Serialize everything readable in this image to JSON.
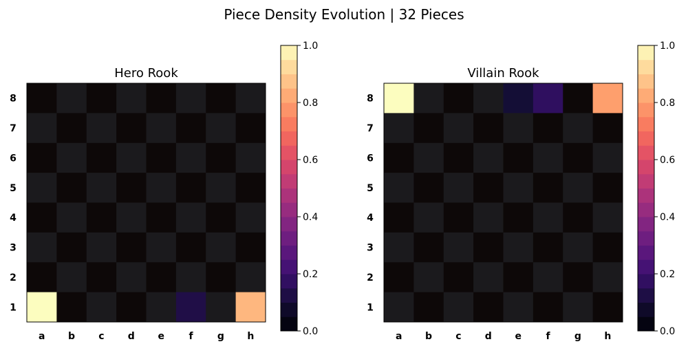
{
  "title": "Piece Density Evolution | 32 Pieces",
  "colors": {
    "dark_square": "#0d0808",
    "light_square": "#1b1a1d",
    "colormap": "magma"
  },
  "chart_data": [
    {
      "type": "heatmap",
      "title": "Hero Rook",
      "files": [
        "a",
        "b",
        "c",
        "d",
        "e",
        "f",
        "g",
        "h"
      ],
      "ranks": [
        "8",
        "7",
        "6",
        "5",
        "4",
        "3",
        "2",
        "1"
      ],
      "cells": [
        {
          "square": "a1",
          "value": 1.0
        },
        {
          "square": "f1",
          "value": 0.13
        },
        {
          "square": "h1",
          "value": 0.85
        }
      ],
      "colorbar": {
        "min": 0.0,
        "max": 1.0,
        "ticks": [
          "0.0",
          "0.2",
          "0.4",
          "0.6",
          "0.8",
          "1.0"
        ]
      }
    },
    {
      "type": "heatmap",
      "title": "Villain Rook",
      "files": [
        "a",
        "b",
        "c",
        "d",
        "e",
        "f",
        "g",
        "h"
      ],
      "ranks": [
        "8",
        "7",
        "6",
        "5",
        "4",
        "3",
        "2",
        "1"
      ],
      "cells": [
        {
          "square": "a8",
          "value": 1.0
        },
        {
          "square": "e8",
          "value": 0.1
        },
        {
          "square": "f8",
          "value": 0.17
        },
        {
          "square": "h8",
          "value": 0.8
        }
      ],
      "colorbar": {
        "min": 0.0,
        "max": 1.0,
        "ticks": [
          "0.0",
          "0.2",
          "0.4",
          "0.6",
          "0.8",
          "1.0"
        ]
      }
    }
  ]
}
